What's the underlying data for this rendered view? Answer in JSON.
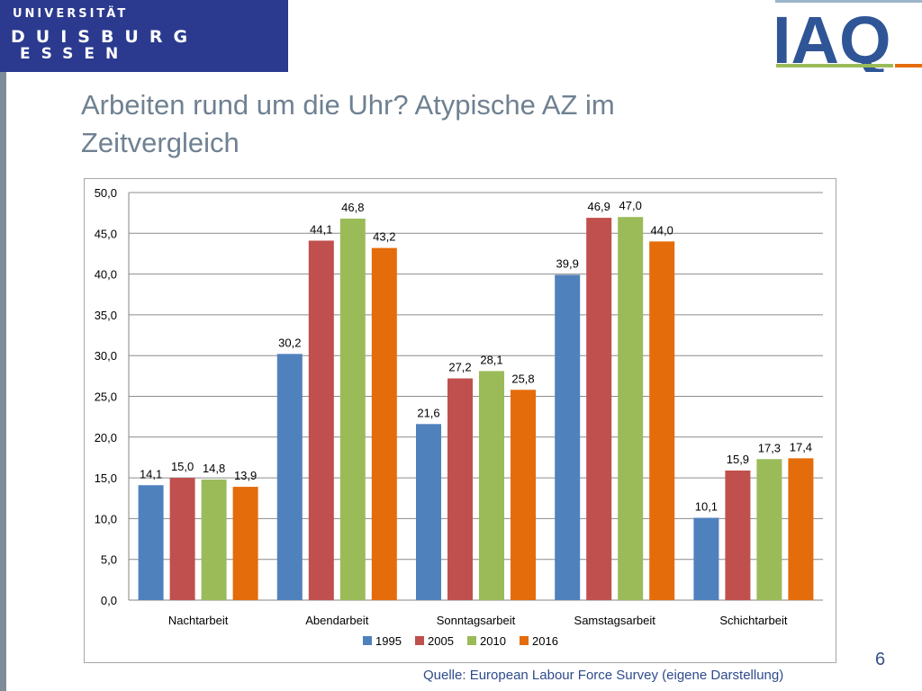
{
  "logo_ude": {
    "line1": "UNIVERSITÄT",
    "line2": "DUISBURG",
    "line3": "ESSEN"
  },
  "logo_iaq": {
    "text": "IAQ"
  },
  "title": "Arbeiten rund um die Uhr? Atypische AZ im Zeitvergleich",
  "slide_number": "6",
  "source": "Quelle: European Labour Force Survey (eigene Darstellung)",
  "colors": {
    "s1995": "#4f81bd",
    "s2005": "#c0504d",
    "s2010": "#9bbb59",
    "s2016": "#e46c0a",
    "title": "#6f8192",
    "ude_blue": "#2b3a8e"
  },
  "chart_data": {
    "type": "bar",
    "title": "",
    "xlabel": "",
    "ylabel": "",
    "categories": [
      "Nachtarbeit",
      "Abendarbeit",
      "Sonntagsarbeit",
      "Samstagsarbeit",
      "Schichtarbeit"
    ],
    "series": [
      {
        "name": "1995",
        "values": [
          14.1,
          30.2,
          21.6,
          39.9,
          10.1
        ],
        "labels": [
          "14,1",
          "30,2",
          "21,6",
          "39,9",
          "10,1"
        ]
      },
      {
        "name": "2005",
        "values": [
          15.0,
          44.1,
          27.2,
          46.9,
          15.9
        ],
        "labels": [
          "15,0",
          "44,1",
          "27,2",
          "46,9",
          "15,9"
        ]
      },
      {
        "name": "2010",
        "values": [
          14.8,
          46.8,
          28.1,
          47.0,
          17.3
        ],
        "labels": [
          "14,8",
          "46,8",
          "28,1",
          "47,0",
          "17,3"
        ]
      },
      {
        "name": "2016",
        "values": [
          13.9,
          43.2,
          25.8,
          44.0,
          17.4
        ],
        "labels": [
          "13,9",
          "43,2",
          "25,8",
          "44,0",
          "17,4"
        ]
      }
    ],
    "ylim": [
      0,
      50
    ],
    "yticks": [
      "0,0",
      "5,0",
      "10,0",
      "15,0",
      "20,0",
      "25,0",
      "30,0",
      "35,0",
      "40,0",
      "45,0",
      "50,0"
    ],
    "grid": true,
    "legend_position": "bottom"
  }
}
